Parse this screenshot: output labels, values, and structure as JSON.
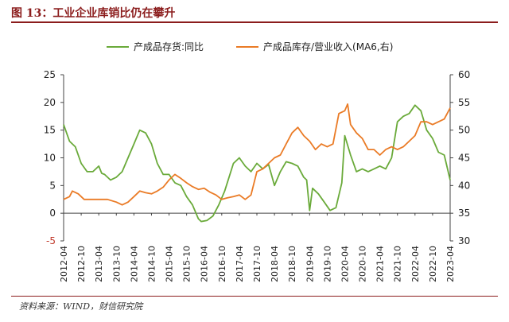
{
  "figure": {
    "title": "图 13：工业企业库销比仍在攀升",
    "source": "资料来源：WIND，财信研究院"
  },
  "colors": {
    "title": "#8b1c1c",
    "series_left": "#6aaa3a",
    "series_right": "#ea7b26",
    "axis": "#444444"
  },
  "chart_data": {
    "type": "line",
    "title": "",
    "legend_position": "top",
    "grid": false,
    "y_left": {
      "ticks": [
        -5,
        0,
        5,
        10,
        15,
        20,
        25
      ],
      "tick_labels": [
        "-5",
        "0",
        "5",
        "10",
        "15",
        "20",
        "25"
      ],
      "lim": [
        -5,
        25
      ]
    },
    "y_right": {
      "ticks": [
        30,
        35,
        40,
        45,
        50,
        55,
        60
      ],
      "tick_labels": [
        "30",
        "35",
        "40",
        "45",
        "50",
        "55",
        "60"
      ],
      "lim": [
        30,
        60
      ]
    },
    "x_tick_labels": [
      "2012-04",
      "2012-10",
      "2013-04",
      "2013-10",
      "2014-04",
      "2014-10",
      "2015-04",
      "2015-10",
      "2016-04",
      "2016-10",
      "2017-04",
      "2017-10",
      "2018-04",
      "2018-10",
      "2019-04",
      "2019-10",
      "2020-04",
      "2020-10",
      "2021-04",
      "2021-10",
      "2022-04",
      "2022-10",
      "2023-04"
    ],
    "series": [
      {
        "name": "产成品存货:同比",
        "axis": "left",
        "points": [
          [
            "2012-04",
            16.0
          ],
          [
            "2012-06",
            13.0
          ],
          [
            "2012-08",
            12.0
          ],
          [
            "2012-10",
            9.0
          ],
          [
            "2012-12",
            7.5
          ],
          [
            "2013-02",
            7.5
          ],
          [
            "2013-04",
            8.5
          ],
          [
            "2013-05",
            7.2
          ],
          [
            "2013-06",
            7.0
          ],
          [
            "2013-08",
            6.0
          ],
          [
            "2013-10",
            6.5
          ],
          [
            "2013-12",
            7.5
          ],
          [
            "2014-02",
            10.0
          ],
          [
            "2014-04",
            12.5
          ],
          [
            "2014-06",
            15.0
          ],
          [
            "2014-08",
            14.5
          ],
          [
            "2014-10",
            12.5
          ],
          [
            "2014-12",
            9.0
          ],
          [
            "2015-02",
            7.0
          ],
          [
            "2015-04",
            7.0
          ],
          [
            "2015-06",
            5.5
          ],
          [
            "2015-08",
            5.0
          ],
          [
            "2015-10",
            3.0
          ],
          [
            "2015-12",
            1.5
          ],
          [
            "2016-02",
            -1.0
          ],
          [
            "2016-03",
            -1.5
          ],
          [
            "2016-05",
            -1.3
          ],
          [
            "2016-07",
            -0.5
          ],
          [
            "2016-09",
            1.5
          ],
          [
            "2016-11",
            4.0
          ],
          [
            "2017-02",
            9.0
          ],
          [
            "2017-04",
            10.0
          ],
          [
            "2017-06",
            8.5
          ],
          [
            "2017-08",
            7.5
          ],
          [
            "2017-10",
            9.0
          ],
          [
            "2017-12",
            8.0
          ],
          [
            "2018-02",
            8.8
          ],
          [
            "2018-04",
            5.0
          ],
          [
            "2018-06",
            7.5
          ],
          [
            "2018-08",
            9.3
          ],
          [
            "2018-10",
            9.0
          ],
          [
            "2018-12",
            8.5
          ],
          [
            "2019-02",
            6.5
          ],
          [
            "2019-03",
            6.0
          ],
          [
            "2019-04",
            0.5
          ],
          [
            "2019-05",
            4.5
          ],
          [
            "2019-07",
            3.5
          ],
          [
            "2019-09",
            2.0
          ],
          [
            "2019-11",
            0.5
          ],
          [
            "2020-01",
            1.0
          ],
          [
            "2020-03",
            5.5
          ],
          [
            "2020-04",
            14.0
          ],
          [
            "2020-06",
            10.5
          ],
          [
            "2020-08",
            7.5
          ],
          [
            "2020-10",
            8.0
          ],
          [
            "2020-12",
            7.5
          ],
          [
            "2021-02",
            8.0
          ],
          [
            "2021-04",
            8.5
          ],
          [
            "2021-06",
            8.0
          ],
          [
            "2021-08",
            10.0
          ],
          [
            "2021-10",
            16.5
          ],
          [
            "2021-12",
            17.5
          ],
          [
            "2022-02",
            18.0
          ],
          [
            "2022-04",
            19.5
          ],
          [
            "2022-06",
            18.5
          ],
          [
            "2022-08",
            15.0
          ],
          [
            "2022-10",
            13.5
          ],
          [
            "2022-12",
            11.0
          ],
          [
            "2023-02",
            10.5
          ],
          [
            "2023-04",
            6.0
          ]
        ]
      },
      {
        "name": "产成品库存/营业收入(MA6,右)",
        "axis": "right",
        "points": [
          [
            "2012-04",
            37.5
          ],
          [
            "2012-06",
            38.0
          ],
          [
            "2012-07",
            39.0
          ],
          [
            "2012-09",
            38.5
          ],
          [
            "2012-11",
            37.5
          ],
          [
            "2013-01",
            37.5
          ],
          [
            "2013-04",
            37.5
          ],
          [
            "2013-07",
            37.5
          ],
          [
            "2013-10",
            37.0
          ],
          [
            "2013-12",
            36.5
          ],
          [
            "2014-02",
            37.0
          ],
          [
            "2014-04",
            38.0
          ],
          [
            "2014-06",
            39.0
          ],
          [
            "2014-08",
            38.7
          ],
          [
            "2014-10",
            38.5
          ],
          [
            "2014-12",
            39.0
          ],
          [
            "2015-02",
            39.7
          ],
          [
            "2015-04",
            41.0
          ],
          [
            "2015-06",
            42.0
          ],
          [
            "2015-08",
            41.3
          ],
          [
            "2015-10",
            40.5
          ],
          [
            "2015-12",
            39.8
          ],
          [
            "2016-02",
            39.3
          ],
          [
            "2016-04",
            39.5
          ],
          [
            "2016-06",
            38.8
          ],
          [
            "2016-08",
            38.3
          ],
          [
            "2016-10",
            37.5
          ],
          [
            "2016-12",
            37.8
          ],
          [
            "2017-02",
            38.0
          ],
          [
            "2017-04",
            38.3
          ],
          [
            "2017-06",
            37.5
          ],
          [
            "2017-08",
            38.3
          ],
          [
            "2017-10",
            42.5
          ],
          [
            "2017-12",
            43.0
          ],
          [
            "2018-02",
            44.0
          ],
          [
            "2018-04",
            45.0
          ],
          [
            "2018-06",
            45.5
          ],
          [
            "2018-08",
            47.5
          ],
          [
            "2018-10",
            49.5
          ],
          [
            "2018-12",
            50.5
          ],
          [
            "2019-02",
            49.0
          ],
          [
            "2019-04",
            48.0
          ],
          [
            "2019-06",
            46.5
          ],
          [
            "2019-08",
            47.5
          ],
          [
            "2019-10",
            47.0
          ],
          [
            "2019-12",
            47.5
          ],
          [
            "2020-02",
            53.0
          ],
          [
            "2020-04",
            53.5
          ],
          [
            "2020-05",
            54.7
          ],
          [
            "2020-06",
            51.0
          ],
          [
            "2020-08",
            49.5
          ],
          [
            "2020-10",
            48.5
          ],
          [
            "2020-12",
            46.5
          ],
          [
            "2021-02",
            46.5
          ],
          [
            "2021-04",
            45.5
          ],
          [
            "2021-06",
            46.5
          ],
          [
            "2021-08",
            47.0
          ],
          [
            "2021-10",
            46.5
          ],
          [
            "2021-12",
            47.0
          ],
          [
            "2022-02",
            48.0
          ],
          [
            "2022-04",
            49.0
          ],
          [
            "2022-06",
            51.5
          ],
          [
            "2022-08",
            51.5
          ],
          [
            "2022-10",
            51.0
          ],
          [
            "2022-12",
            51.5
          ],
          [
            "2023-02",
            52.0
          ],
          [
            "2023-04",
            54.0
          ]
        ]
      }
    ]
  }
}
